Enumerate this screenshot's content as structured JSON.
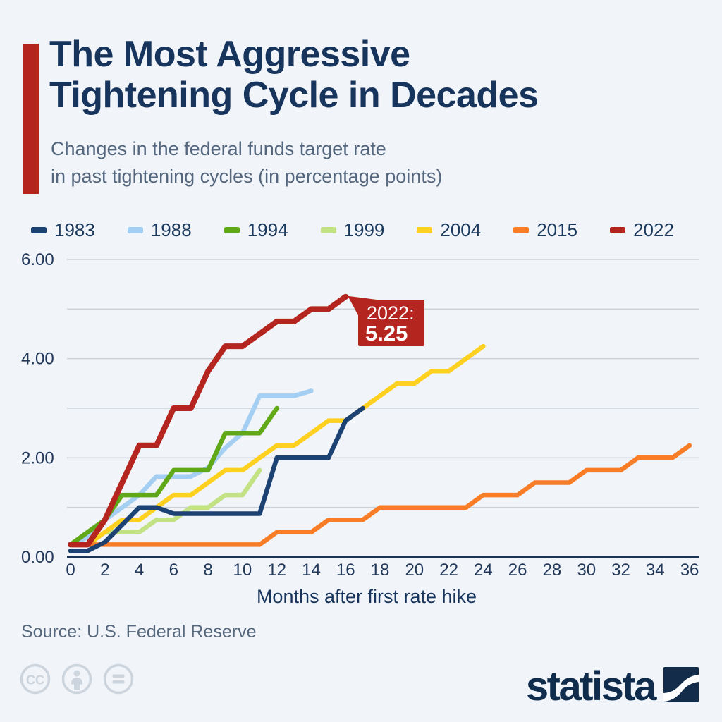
{
  "header": {
    "title": "The Most Aggressive\nTightening Cycle in Decades",
    "subtitle": "Changes in the federal funds target rate\nin past tightening cycles (in percentage points)",
    "accent_color": "#b5251f"
  },
  "chart_data": {
    "type": "line",
    "title": "The Most Aggressive Tightening Cycle in Decades",
    "xlabel": "Months after first rate hike",
    "ylabel": "",
    "xlim": [
      0,
      36
    ],
    "ylim": [
      0,
      6
    ],
    "grid": true,
    "legend_position": "top",
    "x_ticks": [
      0,
      2,
      4,
      6,
      8,
      10,
      12,
      14,
      16,
      18,
      20,
      22,
      24,
      26,
      28,
      30,
      32,
      34,
      36
    ],
    "y_gridlines": [
      0,
      1,
      2,
      3,
      4,
      5,
      6
    ],
    "y_tick_labels": [
      {
        "value": 6,
        "label": "6.00"
      },
      {
        "value": 4,
        "label": "4.00"
      },
      {
        "value": 2,
        "label": "2.00"
      },
      {
        "value": 0,
        "label": "0.00"
      }
    ],
    "series": [
      {
        "name": "1983",
        "color": "#1c4273",
        "width": 6.5,
        "values": [
          0.125,
          0.125,
          0.3,
          0.65,
          1.0,
          1.0,
          0.875,
          0.875,
          0.875,
          0.875,
          0.875,
          0.875,
          2.0,
          2.0,
          2.0,
          2.0,
          2.75,
          3.0
        ]
      },
      {
        "name": "1988",
        "color": "#a5cff2",
        "width": 6.5,
        "values": [
          0.25,
          0.4,
          0.75,
          1.0,
          1.25,
          1.625,
          1.625,
          1.625,
          1.8,
          2.2,
          2.5,
          3.25,
          3.25,
          3.25,
          3.35
        ]
      },
      {
        "name": "1994",
        "color": "#60a818",
        "width": 6.5,
        "values": [
          0.25,
          0.5,
          0.75,
          1.25,
          1.25,
          1.25,
          1.75,
          1.75,
          1.75,
          2.5,
          2.5,
          2.5,
          3.0
        ]
      },
      {
        "name": "1999",
        "color": "#c2e284",
        "width": 6.5,
        "values": [
          0.25,
          0.25,
          0.5,
          0.5,
          0.5,
          0.75,
          0.75,
          1.0,
          1.0,
          1.25,
          1.25,
          1.75
        ]
      },
      {
        "name": "2004",
        "color": "#fed01f",
        "width": 6.5,
        "values": [
          0.25,
          0.25,
          0.5,
          0.75,
          0.75,
          1.0,
          1.25,
          1.25,
          1.5,
          1.75,
          1.75,
          2.0,
          2.25,
          2.25,
          2.5,
          2.75,
          2.75,
          3.0,
          3.25,
          3.5,
          3.5,
          3.75,
          3.75,
          4.0,
          4.25
        ]
      },
      {
        "name": "2015",
        "color": "#f97d27",
        "width": 6.5,
        "values": [
          0.25,
          0.25,
          0.25,
          0.25,
          0.25,
          0.25,
          0.25,
          0.25,
          0.25,
          0.25,
          0.25,
          0.25,
          0.5,
          0.5,
          0.5,
          0.75,
          0.75,
          0.75,
          1.0,
          1.0,
          1.0,
          1.0,
          1.0,
          1.0,
          1.25,
          1.25,
          1.25,
          1.5,
          1.5,
          1.5,
          1.75,
          1.75,
          1.75,
          2.0,
          2.0,
          2.0,
          2.25
        ]
      },
      {
        "name": "2022",
        "color": "#b5251f",
        "width": 8,
        "values": [
          0.25,
          0.25,
          0.75,
          1.5,
          2.25,
          2.25,
          3.0,
          3.0,
          3.75,
          4.25,
          4.25,
          4.5,
          4.75,
          4.75,
          5.0,
          5.0,
          5.25
        ]
      }
    ],
    "draw_order": [
      "1999",
      "1988",
      "1994",
      "2004",
      "2015",
      "1983",
      "2022"
    ],
    "annotation": {
      "label": "2022:",
      "value": "5.25",
      "month": 16,
      "y": 5.25,
      "bg": "#b5251f",
      "text_color": "#ffffff"
    },
    "colors": {
      "gridline": "#cbd1d9",
      "axis_line": "#19335a",
      "tick_text": "#22395b"
    }
  },
  "footer": {
    "source": "Source: U.S. Federal Reserve",
    "brand": "statista",
    "license_icons": [
      "cc-icon",
      "attribution-person-icon",
      "equals-icon"
    ]
  }
}
